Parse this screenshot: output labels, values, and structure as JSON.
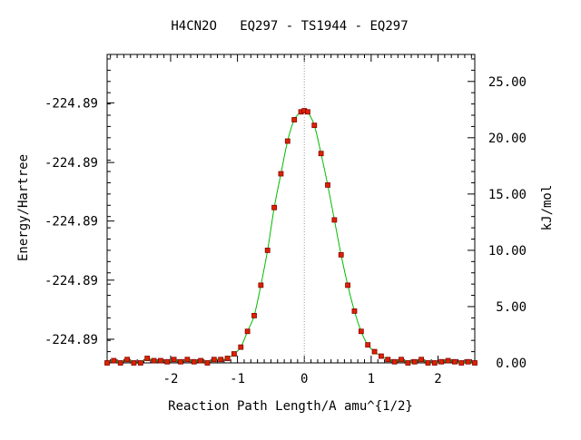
{
  "chart_data": {
    "type": "line",
    "title": "H4CN2O   EQ297 - TS1944 - EQ297",
    "xlabel": "Reaction Path Length/A amu^{1/2}",
    "ylabel_left": "Energy/Hartree",
    "ylabel_right": "kJ/mol",
    "x_range": [
      -2.95,
      2.55
    ],
    "right_axis_range_kjmol": [
      0.0,
      27.4
    ],
    "x_ticks": [
      -2,
      -1,
      0,
      1,
      2
    ],
    "x_tick_labels": [
      "-2",
      "-1",
      "0",
      "1",
      "2"
    ],
    "left_tick_labels": [
      "-224.89",
      "-224.89",
      "-224.89",
      "-224.89",
      "-224.89"
    ],
    "left_tick_kjmol_positions": [
      2.1,
      7.35,
      12.6,
      17.8,
      23.1
    ],
    "right_ticks": [
      0.0,
      5.0,
      10.0,
      15.0,
      20.0,
      25.0
    ],
    "right_tick_labels": [
      "0.00",
      "5.00",
      "10.00",
      "15.00",
      "20.00",
      "25.00"
    ],
    "ts_marker_x": 0,
    "grid": false,
    "series": [
      {
        "x": [
          -2.95,
          -2.85,
          -2.75,
          -2.65,
          -2.55,
          -2.45,
          -2.35,
          -2.25,
          -2.15,
          -2.05,
          -1.95,
          -1.85,
          -1.75,
          -1.65,
          -1.55,
          -1.45,
          -1.35,
          -1.25,
          -1.15,
          -1.05,
          -0.95,
          -0.85,
          -0.75,
          -0.65,
          -0.55,
          -0.45,
          -0.35,
          -0.25,
          -0.15,
          -0.05,
          0.0,
          0.05,
          0.15,
          0.25,
          0.35,
          0.45,
          0.55,
          0.65,
          0.75,
          0.85,
          0.95,
          1.05,
          1.15,
          1.25,
          1.35,
          1.45,
          1.55,
          1.65,
          1.75,
          1.85,
          1.95,
          2.05,
          2.15,
          2.25,
          2.35,
          2.45,
          2.55
        ],
        "y": [
          0.0,
          0.2,
          0.0,
          0.3,
          0.0,
          0.0,
          0.4,
          0.2,
          0.2,
          0.1,
          0.3,
          0.1,
          0.3,
          0.1,
          0.2,
          0.0,
          0.3,
          0.3,
          0.4,
          0.8,
          1.4,
          2.8,
          4.2,
          6.9,
          10.0,
          13.8,
          16.8,
          19.7,
          21.6,
          22.3,
          22.4,
          22.3,
          21.1,
          18.6,
          15.8,
          12.7,
          9.6,
          6.9,
          4.6,
          2.8,
          1.6,
          1.0,
          0.6,
          0.3,
          0.1,
          0.3,
          0.0,
          0.1,
          0.3,
          0.0,
          0.0,
          0.1,
          0.2,
          0.1,
          0.0,
          0.1,
          0.0
        ]
      }
    ],
    "colors": {
      "curve": "#00bb00",
      "marker_fill": "#dd2200",
      "marker_edge": "#880000",
      "ts_marker": "#999999",
      "axes": "#000000"
    }
  }
}
